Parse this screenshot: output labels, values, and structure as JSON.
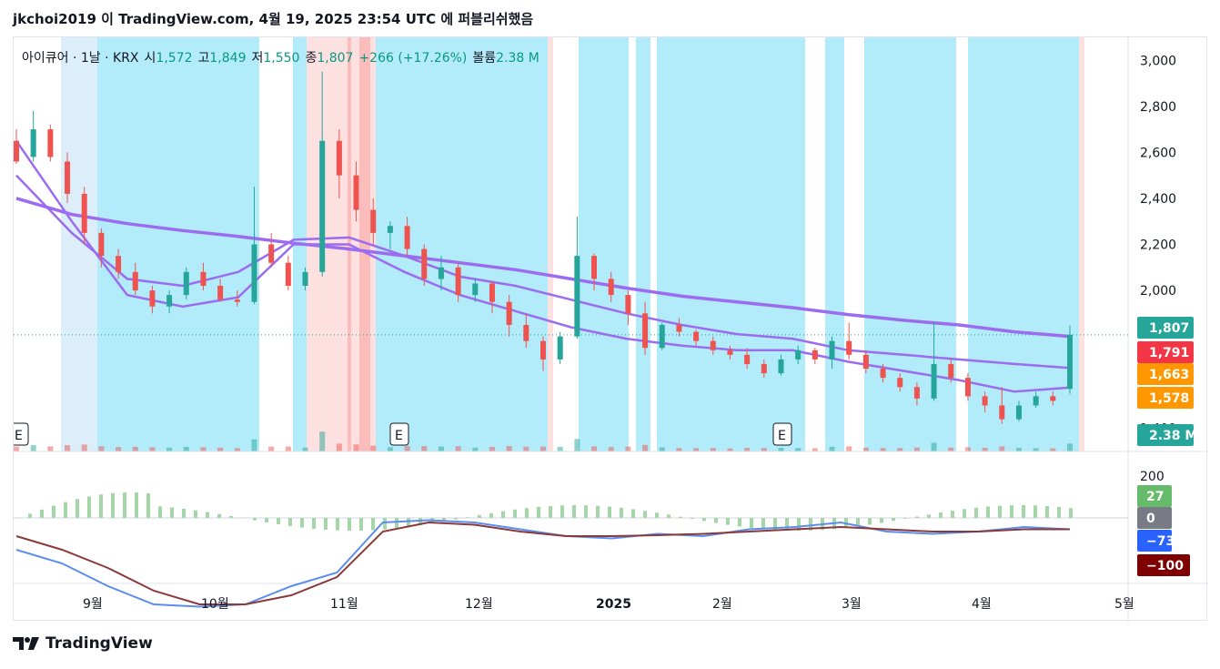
{
  "header": {
    "text": "jkchoi2019 이 TradingView.com, 4월 19, 2025 23:54 UTC 에 퍼블리쉬했음"
  },
  "legend": {
    "symbol": "아이큐어 · 1날 · KRX",
    "open_label": "시",
    "open": "1,572",
    "high_label": "고",
    "high": "1,849",
    "low_label": "저",
    "low": "1,550",
    "close_label": "종",
    "close": "1,807",
    "change": "+266 (+17.26%)",
    "volume_label": "볼륨",
    "volume": "2.38 M"
  },
  "footer": {
    "brand": "TradingView"
  },
  "colors": {
    "up": "#26a69a",
    "down": "#ef5350",
    "ma_purple": "#9c6cf0",
    "cyan_bg": "#b2ebf9",
    "pink_bg": "#fde0e0",
    "macd_blue": "#5b8def",
    "signal_brown": "#8b3a3a"
  },
  "chart_data": {
    "type": "candlestick",
    "y_axis_ticks": [
      "3,000",
      "2,800",
      "2,600",
      "2,400",
      "2,200",
      "2,000",
      "1,400"
    ],
    "x_axis_labels": [
      "9월",
      "10월",
      "11월",
      "12월",
      "2025",
      "2월",
      "3월",
      "4월",
      "5월"
    ],
    "price_labels": [
      {
        "value": "1,807",
        "color": "#26a69a"
      },
      {
        "value": "1,791",
        "color": "#f23645"
      },
      {
        "value": "1,663",
        "color": "#ff9800"
      },
      {
        "value": "1,578",
        "color": "#ff9800"
      },
      {
        "value": "2.38 M",
        "color": "#26a69a"
      }
    ],
    "earnings_markers": [
      "E",
      "E",
      "E"
    ],
    "osc_ticks": [
      "200"
    ],
    "osc_labels": [
      {
        "value": "27",
        "color": "#66bb6a"
      },
      {
        "value": "0",
        "color": "#787b86"
      },
      {
        "value": "−73",
        "color": "#2962ff"
      },
      {
        "value": "−100",
        "color": "#7f0000"
      }
    ],
    "y_range": [
      1300,
      3100
    ],
    "last": {
      "open": 1572,
      "high": 1849,
      "low": 1550,
      "close": 1807
    },
    "candles_approx": [
      [
        2650,
        2700,
        2550,
        2560
      ],
      [
        2580,
        2780,
        2560,
        2700
      ],
      [
        2700,
        2720,
        2560,
        2580
      ],
      [
        2560,
        2600,
        2380,
        2420
      ],
      [
        2420,
        2450,
        2200,
        2250
      ],
      [
        2250,
        2270,
        2100,
        2150
      ],
      [
        2150,
        2180,
        2050,
        2080
      ],
      [
        2080,
        2120,
        1980,
        2000
      ],
      [
        2000,
        2020,
        1900,
        1930
      ],
      [
        1930,
        2000,
        1900,
        1980
      ],
      [
        1980,
        2100,
        1960,
        2080
      ],
      [
        2080,
        2120,
        2000,
        2020
      ],
      [
        2020,
        2050,
        1950,
        1960
      ],
      [
        1960,
        2000,
        1930,
        1950
      ],
      [
        1950,
        2450,
        1940,
        2200
      ],
      [
        2200,
        2250,
        2100,
        2120
      ],
      [
        2120,
        2150,
        2000,
        2020
      ],
      [
        2020,
        2100,
        2000,
        2080
      ],
      [
        2080,
        2950,
        2060,
        2650
      ],
      [
        2650,
        2700,
        2400,
        2500
      ],
      [
        2500,
        2560,
        2300,
        2350
      ],
      [
        2350,
        2400,
        2200,
        2250
      ],
      [
        2250,
        2300,
        2180,
        2280
      ],
      [
        2280,
        2320,
        2150,
        2180
      ],
      [
        2180,
        2200,
        2020,
        2050
      ],
      [
        2050,
        2150,
        2000,
        2100
      ],
      [
        2100,
        2120,
        1950,
        1980
      ],
      [
        1980,
        2050,
        1950,
        2030
      ],
      [
        2030,
        2040,
        1900,
        1950
      ],
      [
        1950,
        1980,
        1800,
        1850
      ],
      [
        1850,
        1900,
        1750,
        1780
      ],
      [
        1780,
        1800,
        1650,
        1700
      ],
      [
        1700,
        1820,
        1680,
        1800
      ],
      [
        1800,
        2320,
        1790,
        2150
      ],
      [
        2150,
        2160,
        2000,
        2050
      ],
      [
        2050,
        2080,
        1950,
        1980
      ],
      [
        1980,
        2000,
        1850,
        1900
      ],
      [
        1900,
        1950,
        1720,
        1750
      ],
      [
        1750,
        1860,
        1740,
        1850
      ],
      [
        1850,
        1880,
        1800,
        1820
      ],
      [
        1820,
        1830,
        1760,
        1780
      ],
      [
        1780,
        1800,
        1720,
        1740
      ],
      [
        1740,
        1760,
        1700,
        1720
      ],
      [
        1720,
        1750,
        1660,
        1680
      ],
      [
        1680,
        1700,
        1620,
        1640
      ],
      [
        1640,
        1720,
        1630,
        1700
      ],
      [
        1700,
        1760,
        1680,
        1740
      ],
      [
        1740,
        1750,
        1680,
        1700
      ],
      [
        1700,
        1800,
        1660,
        1780
      ],
      [
        1780,
        1860,
        1700,
        1720
      ],
      [
        1720,
        1740,
        1640,
        1660
      ],
      [
        1660,
        1680,
        1600,
        1620
      ],
      [
        1620,
        1640,
        1560,
        1580
      ],
      [
        1580,
        1600,
        1500,
        1530
      ],
      [
        1530,
        1860,
        1520,
        1680
      ],
      [
        1680,
        1700,
        1600,
        1620
      ],
      [
        1620,
        1640,
        1520,
        1540
      ],
      [
        1540,
        1560,
        1470,
        1500
      ],
      [
        1500,
        1580,
        1420,
        1440
      ],
      [
        1440,
        1520,
        1430,
        1500
      ],
      [
        1500,
        1560,
        1490,
        1540
      ],
      [
        1540,
        1560,
        1500,
        1520
      ],
      [
        1572,
        1849,
        1550,
        1807
      ]
    ],
    "ma_lines": [
      {
        "name": "",
        "color": "#9c6cf0",
        "values": [
          2400,
          2330,
          2290,
          2260,
          2235,
          2205,
          2180,
          2150,
          2120,
          2090,
          2050,
          2010,
          1975,
          1950,
          1925,
          1895,
          1870,
          1850,
          1820,
          1800
        ]
      },
      {
        "name": "",
        "color": "#9c6cf0",
        "values": [
          2500,
          2250,
          2050,
          2020,
          2080,
          2220,
          2230,
          2150,
          2060,
          2020,
          1960,
          1900,
          1850,
          1810,
          1790,
          1740,
          1720,
          1700,
          1680,
          1663
        ]
      },
      {
        "name": "",
        "color": "#9c6cf0",
        "values": [
          2650,
          2300,
          1980,
          1930,
          1970,
          2200,
          2200,
          2080,
          1980,
          1910,
          1840,
          1790,
          1760,
          1740,
          1740,
          1690,
          1650,
          1610,
          1560,
          1578
        ]
      }
    ],
    "cyan_zones": [
      [
        92,
        270
      ],
      [
        307,
        322
      ],
      [
        398,
        587
      ],
      [
        621,
        676
      ],
      [
        684,
        700
      ],
      [
        707,
        870
      ],
      [
        892,
        913
      ],
      [
        935,
        1036
      ],
      [
        1049,
        1171
      ]
    ],
    "lightblue_zones": [
      [
        52,
        92
      ]
    ],
    "pink_zones": [
      [
        322,
        367
      ],
      [
        371,
        380
      ],
      [
        392,
        398
      ],
      [
        587,
        593
      ],
      [
        1171,
        1177
      ]
    ],
    "red_zones": [
      [
        367,
        371
      ],
      [
        380,
        392
      ]
    ]
  }
}
